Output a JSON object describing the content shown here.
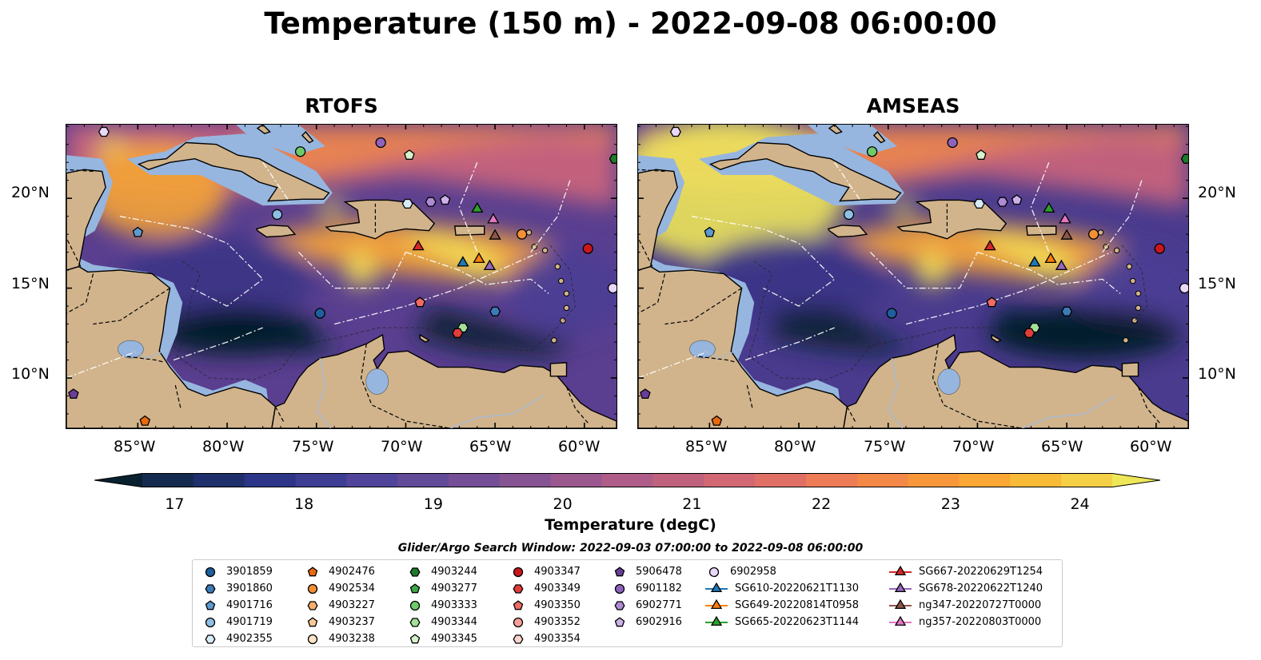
{
  "title": "Temperature (150 m) - 2022-09-08 06:00:00",
  "panels": [
    {
      "title": "RTOFS"
    },
    {
      "title": "AMSEAS"
    }
  ],
  "axes": {
    "lat_ticks": [
      "20°N",
      "15°N",
      "10°N"
    ],
    "lon_ticks": [
      "85°W",
      "80°W",
      "75°W",
      "70°W",
      "65°W",
      "60°W"
    ]
  },
  "colorbar": {
    "label": "Temperature (degC)",
    "ticks": [
      "17",
      "18",
      "19",
      "20",
      "21",
      "22",
      "23",
      "24"
    ],
    "min": 16.5,
    "max": 24.5,
    "extend": "both",
    "colors": [
      "#08202f",
      "#142a4f",
      "#1e2f6b",
      "#2d3588",
      "#3e3d94",
      "#4f4499",
      "#614b99",
      "#744f97",
      "#875493",
      "#9a588e",
      "#ad5d87",
      "#c0627e",
      "#d16873",
      "#e07066",
      "#ec7b56",
      "#f48846",
      "#f89739",
      "#faa833",
      "#f9bb37",
      "#f5cf45",
      "#eee75a"
    ]
  },
  "search_window": "Glider/Argo Search Window: 2022-09-03 07:00:00 to 2022-09-08 06:00:00",
  "legend": {
    "columns": [
      [
        {
          "label": "3901859",
          "shape": "circle",
          "color": "#1f5fa0"
        },
        {
          "label": "3901860",
          "shape": "hexagon",
          "color": "#3d7ab8"
        },
        {
          "label": "4901716",
          "shape": "pentagon",
          "color": "#5d9ad0"
        },
        {
          "label": "4901719",
          "shape": "circle",
          "color": "#8dc0e4"
        },
        {
          "label": "4902355",
          "shape": "hexagon",
          "color": "#d6eaf7"
        }
      ],
      [
        {
          "label": "4902476",
          "shape": "pentagon",
          "color": "#e86a0c"
        },
        {
          "label": "4902534",
          "shape": "circle",
          "color": "#f39036"
        },
        {
          "label": "4903227",
          "shape": "hexagon",
          "color": "#f7ae6b"
        },
        {
          "label": "4903237",
          "shape": "pentagon",
          "color": "#f9c896"
        },
        {
          "label": "4903238",
          "shape": "circle",
          "color": "#fde2c4"
        }
      ],
      [
        {
          "label": "4903244",
          "shape": "hexagon",
          "color": "#1f7a2a"
        },
        {
          "label": "4903277",
          "shape": "pentagon",
          "color": "#3ea647"
        },
        {
          "label": "4903333",
          "shape": "circle",
          "color": "#6fcb6a"
        },
        {
          "label": "4903344",
          "shape": "hexagon",
          "color": "#a4e09a"
        },
        {
          "label": "4903345",
          "shape": "pentagon",
          "color": "#d5f2cc"
        }
      ],
      [
        {
          "label": "4903347",
          "shape": "circle",
          "color": "#c9171c"
        },
        {
          "label": "4903349",
          "shape": "hexagon",
          "color": "#e03c3a"
        },
        {
          "label": "4903350",
          "shape": "pentagon",
          "color": "#ef6b64"
        },
        {
          "label": "4903352",
          "shape": "circle",
          "color": "#f7a09b"
        },
        {
          "label": "4903354",
          "shape": "hexagon",
          "color": "#fcd3cf"
        }
      ],
      [
        {
          "label": "5906478",
          "shape": "pentagon",
          "color": "#6a3d9a"
        },
        {
          "label": "6901182",
          "shape": "circle",
          "color": "#8e63bb"
        },
        {
          "label": "6902771",
          "shape": "hexagon",
          "color": "#ae8bd4"
        },
        {
          "label": "6902916",
          "shape": "pentagon",
          "color": "#cdb2ea"
        }
      ],
      [
        {
          "label": "6902958",
          "shape": "circle",
          "color": "#ead8f8"
        },
        {
          "label": "SG610-20220621T1130",
          "shape": "triangle-line",
          "color": "#1f77b4"
        },
        {
          "label": "SG649-20220814T0958",
          "shape": "triangle-line",
          "color": "#ff7f0e"
        },
        {
          "label": "SG665-20220623T1144",
          "shape": "triangle-line",
          "color": "#2ca02c"
        }
      ],
      [
        {
          "label": "SG667-20220629T1254",
          "shape": "triangle-line",
          "color": "#d62728"
        },
        {
          "label": "SG678-20220622T1240",
          "shape": "triangle-line",
          "color": "#9467bd"
        },
        {
          "label": "ng347-20220727T0000",
          "shape": "triangle-line",
          "color": "#8c564b"
        },
        {
          "label": "ng357-20220803T0000",
          "shape": "triangle-line",
          "color": "#e377c2"
        }
      ]
    ]
  },
  "map_data": {
    "extent": {
      "lon": [
        -89,
        -58.2
      ],
      "lat": [
        7.2,
        24.1
      ]
    },
    "colors": {
      "land": "#d2b48c",
      "shelf": "#96b6e0",
      "warm": "#f0d050"
    },
    "markers": [
      {
        "lon": -74.8,
        "lat": 13.6,
        "shape": "circle",
        "color": "#1f5fa0"
      },
      {
        "lon": -65.0,
        "lat": 13.7,
        "shape": "hexagon",
        "color": "#3d7ab8"
      },
      {
        "lon": -85.0,
        "lat": 18.1,
        "shape": "pentagon",
        "color": "#5d9ad0"
      },
      {
        "lon": -77.2,
        "lat": 19.1,
        "shape": "circle",
        "color": "#8dc0e4"
      },
      {
        "lon": -69.9,
        "lat": 19.7,
        "shape": "hexagon",
        "color": "#d6eaf7"
      },
      {
        "lon": -84.6,
        "lat": 7.6,
        "shape": "pentagon",
        "color": "#e86a0c"
      },
      {
        "lon": -63.5,
        "lat": 18.0,
        "shape": "circle",
        "color": "#f39036"
      },
      {
        "lon": -58.3,
        "lat": 22.2,
        "shape": "hexagon",
        "color": "#1f7a2a"
      },
      {
        "lon": -75.9,
        "lat": 22.6,
        "shape": "circle",
        "color": "#6fcb6a"
      },
      {
        "lon": -66.8,
        "lat": 12.8,
        "shape": "hexagon",
        "color": "#a4e09a"
      },
      {
        "lon": -69.8,
        "lat": 22.4,
        "shape": "pentagon",
        "color": "#d5f2cc"
      },
      {
        "lon": -59.8,
        "lat": 17.2,
        "shape": "circle",
        "color": "#c9171c"
      },
      {
        "lon": -67.1,
        "lat": 12.5,
        "shape": "hexagon",
        "color": "#e03c3a"
      },
      {
        "lon": -69.2,
        "lat": 14.2,
        "shape": "pentagon",
        "color": "#ef6b64"
      },
      {
        "lon": -88.6,
        "lat": 9.1,
        "shape": "pentagon",
        "color": "#6a3d9a"
      },
      {
        "lon": -71.4,
        "lat": 23.1,
        "shape": "circle",
        "color": "#8e63bb"
      },
      {
        "lon": -68.6,
        "lat": 19.8,
        "shape": "hexagon",
        "color": "#ae8bd4"
      },
      {
        "lon": -67.8,
        "lat": 19.9,
        "shape": "pentagon",
        "color": "#cdb2ea"
      },
      {
        "lon": -58.4,
        "lat": 15.0,
        "shape": "circle",
        "color": "#ead8f8"
      },
      {
        "lon": -86.9,
        "lat": 23.7,
        "shape": "hexagon",
        "color": "#ead8f8"
      },
      {
        "lon": -66.8,
        "lat": 16.4,
        "shape": "triangle",
        "color": "#1f77b4"
      },
      {
        "lon": -65.9,
        "lat": 16.6,
        "shape": "triangle",
        "color": "#ff7f0e"
      },
      {
        "lon": -66.0,
        "lat": 19.4,
        "shape": "triangle",
        "color": "#2ca02c"
      },
      {
        "lon": -69.3,
        "lat": 17.3,
        "shape": "triangle",
        "color": "#d62728"
      },
      {
        "lon": -65.3,
        "lat": 16.2,
        "shape": "triangle",
        "color": "#9467bd"
      },
      {
        "lon": -65.0,
        "lat": 17.9,
        "shape": "triangle",
        "color": "#8c564b"
      },
      {
        "lon": -65.1,
        "lat": 18.8,
        "shape": "triangle",
        "color": "#e377c2"
      }
    ]
  }
}
